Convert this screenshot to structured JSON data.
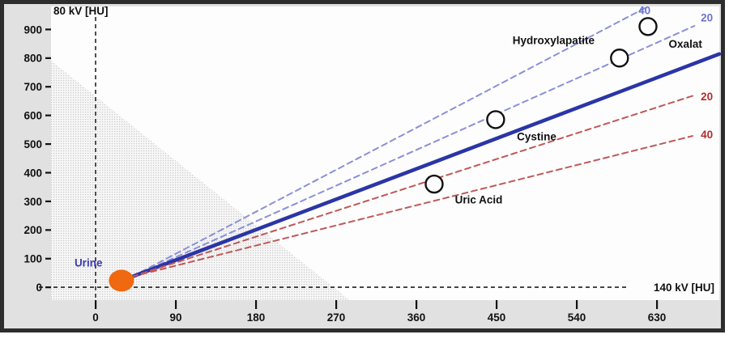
{
  "chart_data": {
    "type": "scatter",
    "title": "",
    "xlabel": "140 kV [HU]",
    "ylabel": "80 kV [HU]",
    "xlim": [
      -50,
      700
    ],
    "ylim": [
      -45,
      980
    ],
    "x_ticks": [
      0,
      90,
      180,
      270,
      360,
      450,
      540,
      630
    ],
    "y_ticks": [
      0,
      100,
      200,
      300,
      400,
      500,
      600,
      700,
      800,
      900
    ],
    "grid": false,
    "legend": "none",
    "colors": {
      "window_bg": "#e1e1e1",
      "plot_bg": "#fdfdfd",
      "border": "#2d2d2d",
      "axis_dash": "#3c3c3c",
      "tick_text": "#111111",
      "separator_line": "#2a35a6",
      "blue_dashed": "#8a90d8",
      "blue_label": "#6d73cc",
      "red_dashed": "#c05858",
      "red_label": "#b32e2e",
      "urine_dot": "#f0680f",
      "urine_label": "#3a3ab8",
      "shade_dot": "#c9c9c9"
    },
    "origin_point": {
      "x": 41,
      "y": 37
    },
    "lines": [
      {
        "name": "blue-dashed-40",
        "label": "40",
        "dash": true,
        "width": 2,
        "color": "#8a90d8",
        "label_color": "#6d73cc",
        "x2": 620,
        "y2": 980,
        "label_x": 616,
        "label_y": 966
      },
      {
        "name": "blue-dashed-20",
        "label": "20",
        "dash": true,
        "width": 2,
        "color": "#8a90d8",
        "label_color": "#6d73cc",
        "x2": 672,
        "y2": 912,
        "label_x": 686,
        "label_y": 940
      },
      {
        "name": "separator-line",
        "label": "",
        "dash": false,
        "width": 4.5,
        "color": "#2a35a6",
        "label_color": "",
        "x2": 700,
        "y2": 814,
        "label_x": 0,
        "label_y": 0
      },
      {
        "name": "red-dashed-20",
        "label": "20",
        "dash": true,
        "width": 2,
        "color": "#c05858",
        "label_color": "#b32e2e",
        "x2": 672,
        "y2": 670,
        "label_x": 686,
        "label_y": 665
      },
      {
        "name": "red-dashed-40",
        "label": "40",
        "dash": true,
        "width": 2,
        "color": "#c05858",
        "label_color": "#b32e2e",
        "x2": 670,
        "y2": 528,
        "label_x": 686,
        "label_y": 532
      }
    ],
    "points": [
      {
        "name": "urine",
        "label": "Urine",
        "x": 29,
        "y": 23,
        "marker": "filled-dot",
        "marker_color": "#f0680f",
        "label_color": "#3a3ab8",
        "label_x": -8,
        "label_y": 85
      },
      {
        "name": "uric-acid",
        "label": "Uric Acid",
        "x": 380,
        "y": 360,
        "marker": "open-circle",
        "marker_color": "#111111",
        "label_color": "#111111",
        "label_x": 430,
        "label_y": 305
      },
      {
        "name": "cystine",
        "label": "Cystine",
        "x": 449,
        "y": 585,
        "marker": "open-circle",
        "marker_color": "#111111",
        "label_color": "#111111",
        "label_x": 495,
        "label_y": 525
      },
      {
        "name": "hydroxylapatite",
        "label": "Hydroxylapatite",
        "x": 588,
        "y": 800,
        "marker": "open-circle",
        "marker_color": "#111111",
        "label_color": "#111111",
        "label_x": 514,
        "label_y": 862
      },
      {
        "name": "oxalat",
        "label": "Oxalat",
        "x": 620,
        "y": 910,
        "marker": "open-circle",
        "marker_color": "#111111",
        "label_color": "#111111",
        "label_x": 662,
        "label_y": 848
      }
    ],
    "shaded_region": [
      [
        -50,
        791
      ],
      [
        -50,
        -45
      ],
      [
        285,
        -45
      ]
    ],
    "zero_lines": {
      "vertical_x": 0,
      "horizontal_y": 0
    }
  }
}
